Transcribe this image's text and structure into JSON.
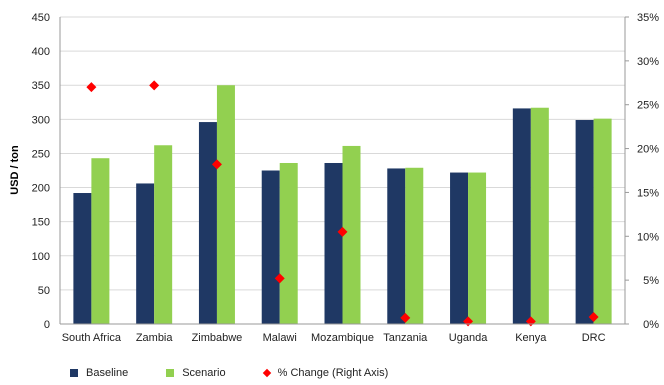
{
  "chart_data": {
    "type": "bar",
    "ylabel": "USD / ton",
    "ylim": [
      0,
      450
    ],
    "y_ticks": [
      "0",
      "50",
      "100",
      "150",
      "200",
      "250",
      "300",
      "350",
      "400",
      "450"
    ],
    "y2lim": [
      0,
      35
    ],
    "y2_ticks": [
      "0%",
      "5%",
      "10%",
      "15%",
      "20%",
      "25%",
      "30%",
      "35%"
    ],
    "grid": true,
    "legend_position": "bottom",
    "categories": [
      "South Africa",
      "Zambia",
      "Zimbabwe",
      "Malawi",
      "Mozambique",
      "Tanzania",
      "Uganda",
      "Kenya",
      "DRC"
    ],
    "series": [
      {
        "name": "Baseline",
        "type": "bar",
        "axis": "left",
        "color": "#1f3864",
        "values": [
          192,
          206,
          296,
          225,
          236,
          228,
          222,
          316,
          299
        ]
      },
      {
        "name": "Scenario",
        "type": "bar",
        "axis": "left",
        "color": "#92d050",
        "values": [
          243,
          262,
          350,
          236,
          261,
          229,
          222,
          317,
          301
        ]
      },
      {
        "name": "% Change (Right Axis)",
        "type": "scatter",
        "axis": "right",
        "color": "#ff0000",
        "values": [
          27.0,
          27.2,
          18.2,
          5.2,
          10.5,
          0.7,
          0.3,
          0.3,
          0.8
        ]
      }
    ]
  }
}
